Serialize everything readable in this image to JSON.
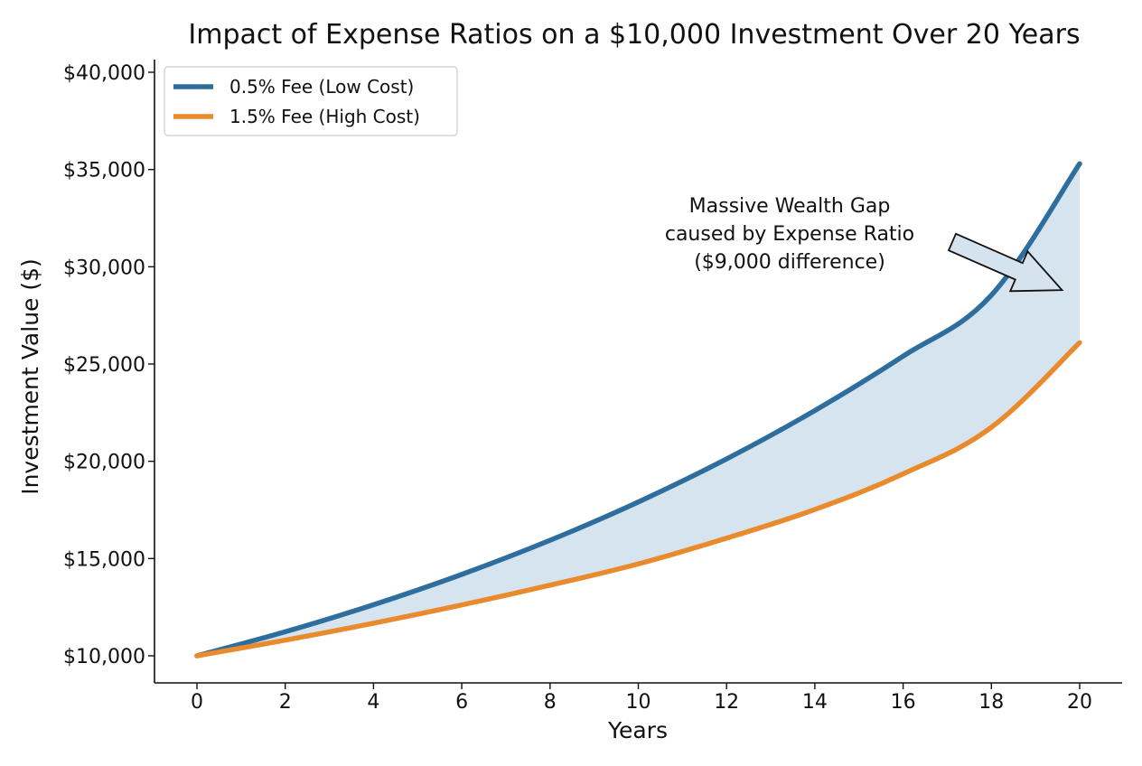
{
  "chart_data": {
    "type": "line",
    "title": "Impact of Expense Ratios on a $10,000 Investment Over 20 Years",
    "xlabel": "Years",
    "ylabel": "Investment Value ($)",
    "xlim": [
      0,
      20
    ],
    "ylim": [
      10000,
      40000
    ],
    "x_ticks": [
      0,
      2,
      4,
      6,
      8,
      10,
      12,
      14,
      16,
      18,
      20
    ],
    "y_ticks": [
      10000,
      15000,
      20000,
      25000,
      30000,
      35000,
      40000
    ],
    "y_tick_labels": [
      "$10,000",
      "$15,000",
      "$20,000",
      "$25,000",
      "$30,000",
      "$35,000",
      "$40,000"
    ],
    "grid": false,
    "legend_position": "top-left",
    "fill_between_series": true,
    "fill_color": "#cfe0ec",
    "series": [
      {
        "name": "0.5% Fee (Low Cost)",
        "color": "#2e6e9e",
        "x": [
          0,
          2,
          4,
          6,
          8,
          10,
          12,
          14,
          16,
          18,
          20
        ],
        "values": [
          10000,
          11236,
          12625,
          14185,
          15938,
          17908,
          20122,
          22609,
          25404,
          28543,
          35300
        ]
      },
      {
        "name": "1.5% Fee (High Cost)",
        "color": "#e98a2c",
        "x": [
          0,
          2,
          4,
          6,
          8,
          10,
          12,
          14,
          16,
          18,
          20
        ],
        "values": [
          10000,
          10805,
          11675,
          12615,
          13630,
          14725,
          16050,
          17520,
          19350,
          21750,
          26100
        ]
      }
    ],
    "annotation": {
      "lines": [
        "Massive Wealth Gap",
        "caused by Expense Ratio",
        "($9,000 difference)"
      ],
      "points_to": {
        "x": 19.6,
        "y": 28800
      }
    }
  }
}
